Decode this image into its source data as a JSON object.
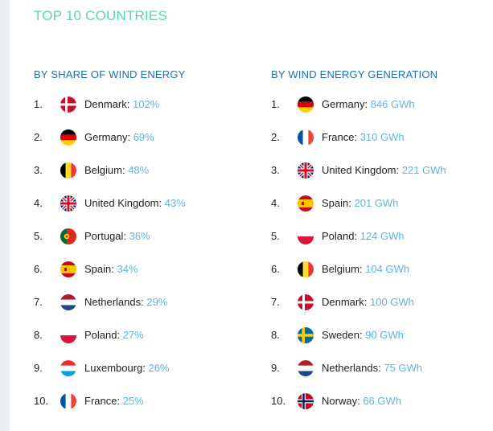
{
  "title": "TOP 10 COUNTRIES",
  "colors": {
    "title": "#5fd6a4",
    "heading": "#1f6fb2",
    "value": "#5fb5de"
  },
  "share_list": {
    "heading": "BY SHARE OF WIND ENERGY",
    "items": [
      {
        "rank": "1.",
        "flag": "denmark-flag-icon",
        "country": "Denmark:",
        "value": "102%"
      },
      {
        "rank": "2.",
        "flag": "germany-flag-icon",
        "country": "Germany:",
        "value": "69%"
      },
      {
        "rank": "3.",
        "flag": "belgium-flag-icon",
        "country": "Belgium:",
        "value": "48%"
      },
      {
        "rank": "4.",
        "flag": "uk-flag-icon",
        "country": "United Kingdom:",
        "value": "43%"
      },
      {
        "rank": "5.",
        "flag": "portugal-flag-icon",
        "country": "Portugal:",
        "value": "36%"
      },
      {
        "rank": "6.",
        "flag": "spain-flag-icon",
        "country": "Spain:",
        "value": "34%"
      },
      {
        "rank": "7.",
        "flag": "netherlands-flag-icon",
        "country": "Netherlands:",
        "value": "29%"
      },
      {
        "rank": "8.",
        "flag": "poland-flag-icon",
        "country": "Poland:",
        "value": "27%"
      },
      {
        "rank": "9.",
        "flag": "luxembourg-flag-icon",
        "country": "Luxembourg:",
        "value": "26%"
      },
      {
        "rank": "10.",
        "flag": "france-flag-icon",
        "country": "France:",
        "value": "25%"
      }
    ]
  },
  "generation_list": {
    "heading": "BY WIND ENERGY GENERATION",
    "items": [
      {
        "rank": "1.",
        "flag": "germany-flag-icon",
        "country": "Germany:",
        "value": "846 GWh"
      },
      {
        "rank": "2.",
        "flag": "france-flag-icon",
        "country": "France:",
        "value": "310 GWh"
      },
      {
        "rank": "3.",
        "flag": "uk-flag-icon",
        "country": "United Kingdom:",
        "value": "221 GWh"
      },
      {
        "rank": "4.",
        "flag": "spain-flag-icon",
        "country": "Spain:",
        "value": "201 GWh"
      },
      {
        "rank": "5.",
        "flag": "poland-flag-icon",
        "country": "Poland:",
        "value": "124 GWh"
      },
      {
        "rank": "6.",
        "flag": "belgium-flag-icon",
        "country": "Belgium:",
        "value": "104 GWh"
      },
      {
        "rank": "7.",
        "flag": "denmark-flag-icon",
        "country": "Denmark:",
        "value": "100 GWh"
      },
      {
        "rank": "8.",
        "flag": "sweden-flag-icon",
        "country": "Sweden:",
        "value": "90 GWh"
      },
      {
        "rank": "9.",
        "flag": "netherlands-flag-icon",
        "country": "Netherlands:",
        "value": "75 GWh"
      },
      {
        "rank": "10.",
        "flag": "norway-flag-icon",
        "country": "Norway:",
        "value": "66 GWh"
      }
    ]
  }
}
